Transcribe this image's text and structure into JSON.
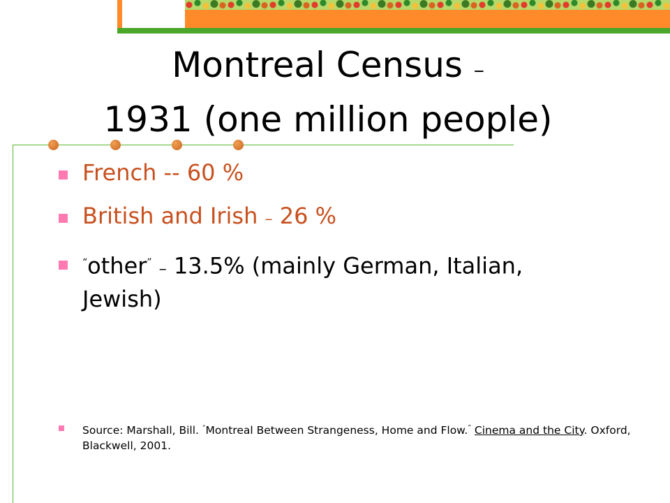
{
  "title": {
    "line1": "Montreal Census",
    "dash": "–",
    "line2": "1931  (one million people)"
  },
  "bullets": [
    {
      "text": "French -- 60 %",
      "color": "#c8501e"
    },
    {
      "pre": "British and Irish",
      "dash": "–",
      "post": "26  %",
      "color": "#c8501e"
    },
    {
      "open_quote": "“",
      "word": "other",
      "close_quote": "”",
      "dash": "–",
      "post": "13.5% (mainly German, Italian, Jewish)",
      "color": "#000000"
    }
  ],
  "source": {
    "prefix": "Source: Marshall, Bill.",
    "open_quote": "“",
    "article": "Montreal Between Strangeness, Home and Flow.",
    "close_quote": "”",
    "book": "Cinema and the City",
    "suffix": ".  Oxford, Blackwell, 2001."
  },
  "colors": {
    "accent_orange": "#c8501e",
    "bullet_pink": "#ff7ab0",
    "line_green": "#5ab52f",
    "banner_orange": "#ff8a2a",
    "banner_green": "#4aa72a"
  }
}
